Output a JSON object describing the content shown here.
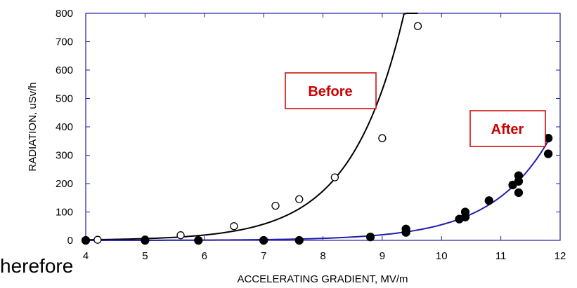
{
  "chart_data": {
    "type": "scatter",
    "xlabel": "ACCELERATING GRADIENT, MV/m",
    "ylabel": "RADIATION, uSv/h",
    "xlim": [
      4,
      12
    ],
    "ylim": [
      0,
      800
    ],
    "x_ticks": [
      4,
      5,
      6,
      7,
      8,
      9,
      10,
      11,
      12
    ],
    "y_ticks": [
      0,
      100,
      200,
      300,
      400,
      500,
      600,
      700,
      800
    ],
    "grid": false,
    "series": [
      {
        "name": "Before",
        "marker": "open-circle",
        "color": "#000000",
        "points": [
          [
            4.2,
            2
          ],
          [
            5.0,
            3
          ],
          [
            5.6,
            18
          ],
          [
            6.5,
            50
          ],
          [
            7.2,
            122
          ],
          [
            7.6,
            145
          ],
          [
            8.2,
            222
          ],
          [
            9.0,
            360
          ],
          [
            9.6,
            755
          ]
        ],
        "fit_curve": {
          "x_range": [
            4.0,
            9.6
          ],
          "color": "#000000"
        }
      },
      {
        "name": "After",
        "marker": "filled-circle",
        "color": "#000000",
        "points": [
          [
            4.0,
            0
          ],
          [
            5.0,
            0
          ],
          [
            5.9,
            0
          ],
          [
            7.0,
            0
          ],
          [
            7.6,
            0
          ],
          [
            8.8,
            12
          ],
          [
            9.4,
            28
          ],
          [
            9.4,
            40
          ],
          [
            10.3,
            75
          ],
          [
            10.4,
            82
          ],
          [
            10.4,
            100
          ],
          [
            10.8,
            140
          ],
          [
            11.2,
            195
          ],
          [
            11.3,
            208
          ],
          [
            11.3,
            228
          ],
          [
            11.3,
            168
          ],
          [
            11.8,
            305
          ],
          [
            11.8,
            360
          ]
        ],
        "fit_curve": {
          "x_range": [
            4.0,
            11.8
          ],
          "color": "#1f1faa"
        }
      }
    ],
    "annotations": [
      {
        "text": "Before",
        "color": "#cc0000"
      },
      {
        "text": "After",
        "color": "#cc0000"
      }
    ]
  },
  "overflow_text": "herefore"
}
